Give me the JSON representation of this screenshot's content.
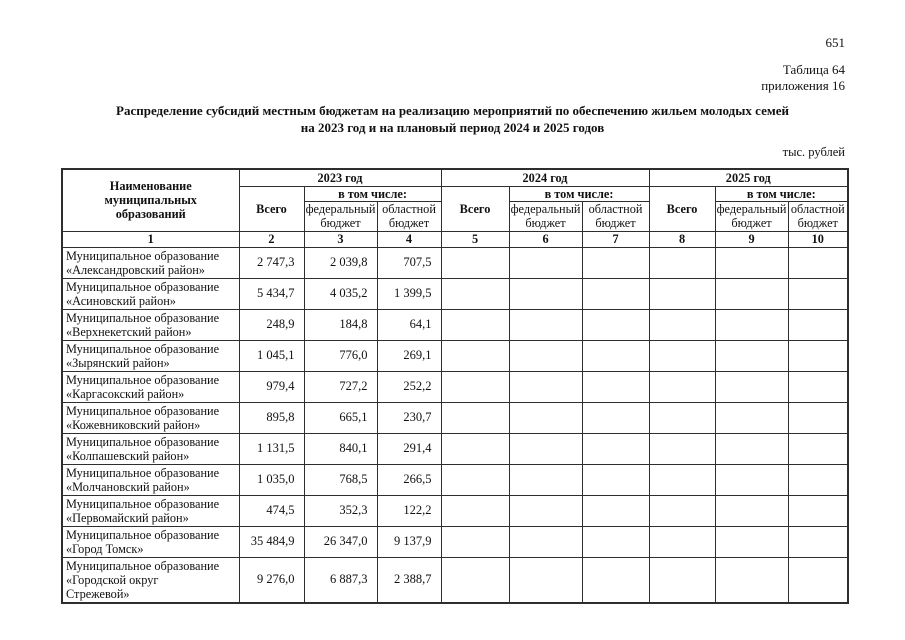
{
  "page": {
    "page_number": "651",
    "table_label": "Таблица 64",
    "appendix_label": "приложения 16",
    "title_line1": "Распределение субсидий местным бюджетам на реализацию мероприятий по обеспечению жильем молодых семей",
    "title_line2": "на 2023 год и на плановый период 2024 и 2025 годов",
    "units_label": "тыс. рублей"
  },
  "table": {
    "header": {
      "name_column": "Наименование\nмуниципальных\nобразований",
      "years": [
        "2023 год",
        "2024 год",
        "2025 год"
      ],
      "including_label": "в том числе:",
      "total_label": "Всего",
      "federal_label": "федеральный\nбюджет",
      "regional_label": "областной\nбюджет",
      "col_numbers": [
        "1",
        "2",
        "3",
        "4",
        "5",
        "6",
        "7",
        "8",
        "9",
        "10"
      ]
    },
    "rows": [
      {
        "name": "Муниципальное образование\n«Александровский район»",
        "values": [
          "2 747,3",
          "2 039,8",
          "707,5",
          "",
          "",
          "",
          "",
          "",
          ""
        ]
      },
      {
        "name": "Муниципальное образование\n«Асиновский район»",
        "values": [
          "5 434,7",
          "4 035,2",
          "1 399,5",
          "",
          "",
          "",
          "",
          "",
          ""
        ]
      },
      {
        "name": "Муниципальное образование\n«Верхнекетский район»",
        "values": [
          "248,9",
          "184,8",
          "64,1",
          "",
          "",
          "",
          "",
          "",
          ""
        ]
      },
      {
        "name": "Муниципальное образование\n«Зырянский район»",
        "values": [
          "1 045,1",
          "776,0",
          "269,1",
          "",
          "",
          "",
          "",
          "",
          ""
        ]
      },
      {
        "name": "Муниципальное образование\n«Каргасокский район»",
        "values": [
          "979,4",
          "727,2",
          "252,2",
          "",
          "",
          "",
          "",
          "",
          ""
        ]
      },
      {
        "name": "Муниципальное образование\n«Кожевниковский район»",
        "values": [
          "895,8",
          "665,1",
          "230,7",
          "",
          "",
          "",
          "",
          "",
          ""
        ]
      },
      {
        "name": "Муниципальное образование\n«Колпашевский район»",
        "values": [
          "1 131,5",
          "840,1",
          "291,4",
          "",
          "",
          "",
          "",
          "",
          ""
        ]
      },
      {
        "name": "Муниципальное образование\n«Молчановский район»",
        "values": [
          "1 035,0",
          "768,5",
          "266,5",
          "",
          "",
          "",
          "",
          "",
          ""
        ]
      },
      {
        "name": "Муниципальное образование\n«Первомайский район»",
        "values": [
          "474,5",
          "352,3",
          "122,2",
          "",
          "",
          "",
          "",
          "",
          ""
        ]
      },
      {
        "name": "Муниципальное образование\n«Город Томск»",
        "values": [
          "35 484,9",
          "26 347,0",
          "9 137,9",
          "",
          "",
          "",
          "",
          "",
          ""
        ]
      },
      {
        "name": "Муниципальное образование\n«Городской округ\nСтрежевой»",
        "values": [
          "9 276,0",
          "6 887,3",
          "2 388,7",
          "",
          "",
          "",
          "",
          "",
          ""
        ]
      }
    ]
  }
}
